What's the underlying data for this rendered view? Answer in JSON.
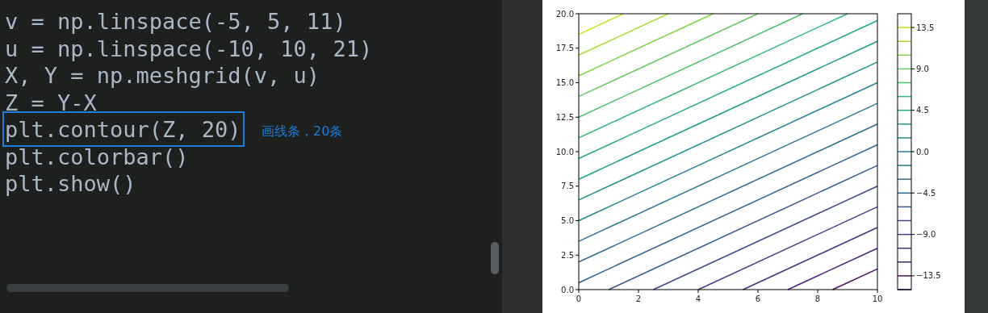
{
  "chart_data": {
    "type": "line",
    "xlim": [
      0,
      10
    ],
    "ylim": [
      0,
      20
    ],
    "xticks": [
      0,
      2,
      4,
      6,
      8,
      10
    ],
    "yticks": [
      {
        "value": 0,
        "label": "0.0"
      },
      2.5,
      {
        "value": 5,
        "label": "5.0"
      },
      7.5,
      {
        "value": 10,
        "label": "10.0"
      },
      12.5,
      {
        "value": 15,
        "label": "15.0"
      },
      17.5,
      {
        "value": 20,
        "label": "20.0"
      }
    ],
    "clim": [
      -15,
      15
    ],
    "cticks": [
      {
        "value": -13.5,
        "label": "−13.5"
      },
      {
        "value": -9,
        "label": "−9.0"
      },
      {
        "value": -4.5,
        "label": "−4.5"
      },
      {
        "value": 0,
        "label": "0.0"
      },
      4.5,
      {
        "value": 9,
        "label": "9.0"
      },
      13.5
    ],
    "annotations": [
      "v = np.linspace(-5, 5, 11)",
      "u = np.linspace(-10, 10, 21)",
      "X, Y = np.meshgrid(v, u)",
      "Z = Y-X",
      "plt.contour(Z, 20)",
      "plt.colorbar()",
      "plt.show()",
      "画线条，20条"
    ],
    "series": [
      {
        "color": "#471365",
        "x": [
          8.5,
          10
        ],
        "values": [
          0,
          1.5
        ]
      },
      {
        "color": "#482374",
        "x": [
          7,
          10
        ],
        "values": [
          0,
          3
        ]
      },
      {
        "color": "#46307e",
        "x": [
          5.5,
          10
        ],
        "values": [
          0,
          4.5
        ]
      },
      {
        "color": "#433e85",
        "x": [
          4,
          10
        ],
        "values": [
          0,
          6
        ]
      },
      {
        "color": "#3e4a89",
        "x": [
          2.5,
          10
        ],
        "values": [
          0,
          7.5
        ]
      },
      {
        "color": "#38588c",
        "x": [
          1,
          10
        ],
        "values": [
          0,
          9
        ]
      },
      {
        "color": "#33638d",
        "x": [
          0,
          10
        ],
        "values": [
          0.5,
          10.5
        ]
      },
      {
        "color": "#2e6f8e",
        "x": [
          0,
          10
        ],
        "values": [
          2,
          12
        ]
      },
      {
        "color": "#297a8e",
        "x": [
          0,
          10
        ],
        "values": [
          3.5,
          13.5
        ]
      },
      {
        "color": "#25858e",
        "x": [
          0,
          10
        ],
        "values": [
          5,
          15
        ]
      },
      {
        "color": "#21918c",
        "x": [
          0,
          10
        ],
        "values": [
          6.5,
          16.5
        ]
      },
      {
        "color": "#1f9c89",
        "x": [
          0,
          10
        ],
        "values": [
          8,
          18
        ]
      },
      {
        "color": "#25a884",
        "x": [
          0,
          10
        ],
        "values": [
          9.5,
          19.5
        ]
      },
      {
        "color": "#35b779",
        "x": [
          0,
          9
        ],
        "values": [
          11,
          20
        ]
      },
      {
        "color": "#4ac16d",
        "x": [
          0,
          7.5
        ],
        "values": [
          12.5,
          20
        ]
      },
      {
        "color": "#65cb5e",
        "x": [
          0,
          6
        ],
        "values": [
          14,
          20
        ]
      },
      {
        "color": "#84d44b",
        "x": [
          0,
          4.5
        ],
        "values": [
          15.5,
          20
        ]
      },
      {
        "color": "#a8db34",
        "x": [
          0,
          3
        ],
        "values": [
          17,
          20
        ]
      },
      {
        "color": "#c8e020",
        "x": [
          0,
          1.5
        ],
        "values": [
          18.5,
          20
        ]
      }
    ]
  }
}
